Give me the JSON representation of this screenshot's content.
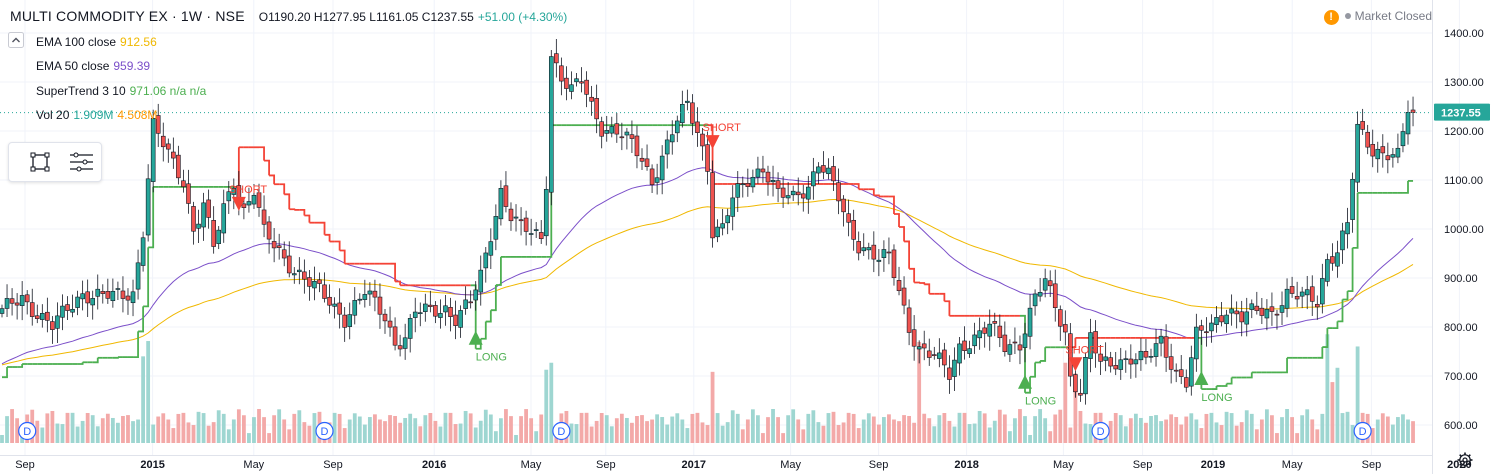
{
  "header": {
    "title": "MULTI COMMODITY EX · 1W · NSE",
    "ohlc": "O1190.20  H1277.95  L1161.05  C1237.55",
    "change": "+51.00 (+4.30%)"
  },
  "status": {
    "label": "Market Closed"
  },
  "indicators": [
    {
      "name": "EMA 100 close",
      "value": "912.56",
      "color": "#f0b800"
    },
    {
      "name": "EMA 50 close",
      "value": "959.39",
      "color": "#7b4fc9"
    },
    {
      "name": "SuperTrend 3 10",
      "value": "971.06  n/a  n/a",
      "color": "#4caf50"
    },
    {
      "name": "Vol 20",
      "value": "1.909M",
      "value2": "4.508M",
      "color": "#26a69a",
      "color2": "#ff9800"
    }
  ],
  "icons": [
    "eye-off-icon",
    "collapse-icon",
    "rectangle-tool-icon",
    "lines-tool-icon",
    "settings-icon"
  ],
  "colors": {
    "up": "#26a69a",
    "down": "#ef5350",
    "st_up": "#4caf50",
    "st_down": "#f44336",
    "ema50": "#7b4fc9",
    "ema100": "#f0b800"
  },
  "chart_data": {
    "type": "candlestick",
    "title": "MULTI COMMODITY EX · 1W · NSE",
    "ylim": [
      575,
      1415
    ],
    "y_ticks": [
      600,
      700,
      800,
      900,
      1000,
      1100,
      1200,
      1300,
      1400
    ],
    "y_tick_labels": [
      "600.00",
      "700.00",
      "800.00",
      "900.00",
      "1000.00",
      "1100.00",
      "1200.00",
      "1300.00",
      "1400.00"
    ],
    "last_price": 1237.55,
    "last_price_label": "1237.55",
    "x_labels": [
      "Sep",
      "2015",
      "May",
      "Sep",
      "2016",
      "May",
      "Sep",
      "2017",
      "May",
      "Sep",
      "2018",
      "May",
      "Sep",
      "2019",
      "May",
      "Sep",
      "2020"
    ],
    "close_path": [
      [
        0,
        830
      ],
      [
        4,
        860
      ],
      [
        10,
        800
      ],
      [
        16,
        870
      ],
      [
        22,
        860
      ],
      [
        26,
        870
      ],
      [
        28,
        1000
      ],
      [
        30,
        1210
      ],
      [
        33,
        1150
      ],
      [
        36,
        1100
      ],
      [
        38,
        1000
      ],
      [
        40,
        1050
      ],
      [
        42,
        960
      ],
      [
        44,
        1040
      ],
      [
        46,
        1100
      ],
      [
        48,
        1040
      ],
      [
        50,
        1080
      ],
      [
        52,
        990
      ],
      [
        56,
        940
      ],
      [
        60,
        900
      ],
      [
        64,
        860
      ],
      [
        68,
        820
      ],
      [
        72,
        870
      ],
      [
        76,
        820
      ],
      [
        78,
        770
      ],
      [
        80,
        780
      ],
      [
        82,
        830
      ],
      [
        85,
        830
      ],
      [
        88,
        840
      ],
      [
        90,
        820
      ],
      [
        93,
        850
      ],
      [
        95,
        900
      ],
      [
        97,
        990
      ],
      [
        99,
        1080
      ],
      [
        101,
        1030
      ],
      [
        103,
        1000
      ],
      [
        105,
        990
      ],
      [
        107,
        980
      ],
      [
        108,
        1100
      ],
      [
        109,
        1360
      ],
      [
        111,
        1310
      ],
      [
        113,
        1280
      ],
      [
        115,
        1300
      ],
      [
        117,
        1250
      ],
      [
        119,
        1210
      ],
      [
        122,
        1200
      ],
      [
        125,
        1170
      ],
      [
        127,
        1140
      ],
      [
        129,
        1100
      ],
      [
        131,
        1150
      ],
      [
        134,
        1220
      ],
      [
        136,
        1250
      ],
      [
        138,
        1200
      ],
      [
        140,
        1130
      ],
      [
        141,
        1000
      ],
      [
        143,
        1000
      ],
      [
        145,
        1060
      ],
      [
        148,
        1100
      ],
      [
        151,
        1130
      ],
      [
        154,
        1070
      ],
      [
        157,
        1060
      ],
      [
        160,
        1090
      ],
      [
        162,
        1140
      ],
      [
        164,
        1110
      ],
      [
        166,
        1060
      ],
      [
        168,
        1000
      ],
      [
        170,
        970
      ],
      [
        172,
        960
      ],
      [
        174,
        940
      ],
      [
        176,
        940
      ],
      [
        178,
        870
      ],
      [
        180,
        800
      ],
      [
        182,
        760
      ],
      [
        185,
        740
      ],
      [
        188,
        700
      ],
      [
        190,
        760
      ],
      [
        193,
        780
      ],
      [
        196,
        800
      ],
      [
        199,
        760
      ],
      [
        202,
        770
      ],
      [
        205,
        860
      ],
      [
        207,
        890
      ],
      [
        209,
        840
      ],
      [
        211,
        790
      ],
      [
        212,
        700
      ],
      [
        214,
        670
      ],
      [
        216,
        780
      ],
      [
        218,
        720
      ],
      [
        221,
        730
      ],
      [
        224,
        740
      ],
      [
        227,
        730
      ],
      [
        230,
        770
      ],
      [
        233,
        710
      ],
      [
        235,
        690
      ],
      [
        237,
        780
      ],
      [
        240,
        800
      ],
      [
        243,
        840
      ],
      [
        246,
        820
      ],
      [
        249,
        830
      ],
      [
        252,
        830
      ],
      [
        255,
        870
      ],
      [
        258,
        860
      ],
      [
        261,
        850
      ],
      [
        263,
        940
      ],
      [
        265,
        960
      ],
      [
        267,
        1010
      ],
      [
        269,
        1200
      ],
      [
        272,
        1160
      ],
      [
        275,
        1160
      ],
      [
        277,
        1150
      ],
      [
        279,
        1240
      ]
    ],
    "volume_labels": [
      "1.909M",
      "4.508M"
    ],
    "markers": [
      {
        "label": "SHORT",
        "bar": 47,
        "dir": "down"
      },
      {
        "label": "LONG",
        "bar": 94,
        "dir": "up"
      },
      {
        "label": "SHORT",
        "bar": 141,
        "dir": "down"
      },
      {
        "label": "LONG",
        "bar": 203,
        "dir": "up"
      },
      {
        "label": "SHORT",
        "bar": 213,
        "dir": "down"
      },
      {
        "label": "LONG",
        "bar": 238,
        "dir": "up"
      }
    ],
    "dividends": [
      {
        "label": "D",
        "bar": 5
      },
      {
        "label": "D",
        "bar": 64
      },
      {
        "label": "D",
        "bar": 111
      },
      {
        "label": "D",
        "bar": 218
      },
      {
        "label": "D",
        "bar": 270
      }
    ]
  }
}
